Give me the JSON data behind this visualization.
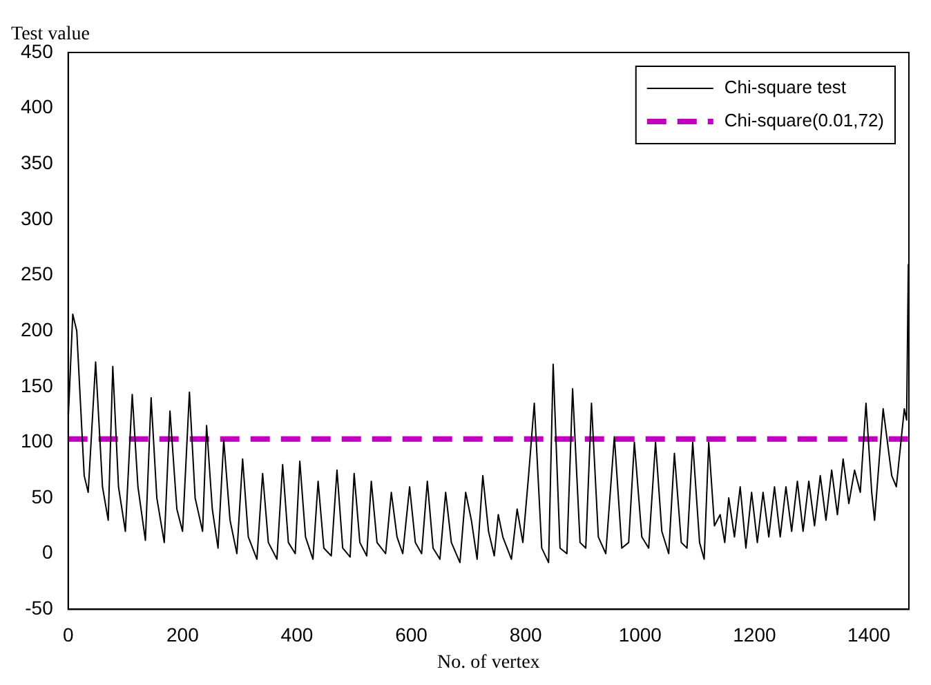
{
  "chart_data": {
    "type": "line",
    "xlabel": "No. of vertex",
    "ylabel": "Test value",
    "xlim": [
      0,
      1470
    ],
    "ylim": [
      -50,
      450
    ],
    "xticks": [
      0,
      200,
      400,
      600,
      800,
      1000,
      1200,
      1400
    ],
    "yticks": [
      -50,
      0,
      50,
      100,
      150,
      200,
      250,
      300,
      350,
      400,
      450
    ],
    "grid": false,
    "legend": "top right",
    "marker": "none",
    "series": [
      {
        "name": "Chi-square test",
        "color": "#000000",
        "line_style": "solid",
        "x": [
          0,
          8,
          15,
          28,
          35,
          48,
          60,
          70,
          78,
          88,
          100,
          112,
          122,
          135,
          145,
          155,
          168,
          178,
          190,
          200,
          212,
          222,
          235,
          242,
          252,
          262,
          272,
          283,
          295,
          305,
          315,
          330,
          340,
          350,
          365,
          375,
          385,
          397,
          405,
          415,
          428,
          437,
          447,
          460,
          470,
          480,
          493,
          500,
          510,
          522,
          530,
          540,
          555,
          565,
          575,
          585,
          597,
          607,
          618,
          628,
          638,
          650,
          660,
          670,
          685,
          695,
          705,
          715,
          725,
          735,
          745,
          752,
          760,
          775,
          785,
          795,
          805,
          815,
          828,
          840,
          848,
          860,
          872,
          882,
          895,
          905,
          915,
          927,
          940,
          955,
          968,
          980,
          990,
          1003,
          1015,
          1027,
          1038,
          1050,
          1060,
          1072,
          1082,
          1092,
          1104,
          1112,
          1120,
          1130,
          1140,
          1148,
          1155,
          1165,
          1175,
          1185,
          1195,
          1205,
          1215,
          1225,
          1235,
          1245,
          1255,
          1265,
          1275,
          1285,
          1295,
          1305,
          1315,
          1325,
          1335,
          1345,
          1355,
          1365,
          1375,
          1385,
          1395,
          1405,
          1410,
          1425,
          1435,
          1440,
          1448,
          1455,
          1462,
          1466,
          1469
        ],
        "values": [
          120,
          215,
          200,
          70,
          55,
          172,
          60,
          30,
          168,
          60,
          20,
          143,
          60,
          12,
          140,
          50,
          10,
          128,
          40,
          20,
          145,
          50,
          20,
          115,
          40,
          5,
          102,
          30,
          0,
          85,
          15,
          -5,
          72,
          10,
          -5,
          80,
          10,
          0,
          83,
          15,
          -5,
          65,
          5,
          -2,
          75,
          5,
          -3,
          72,
          10,
          -2,
          65,
          10,
          0,
          55,
          15,
          0,
          60,
          10,
          0,
          65,
          5,
          -5,
          55,
          10,
          -8,
          55,
          30,
          -5,
          70,
          20,
          -2,
          35,
          15,
          -5,
          40,
          10,
          70,
          135,
          5,
          -8,
          170,
          5,
          0,
          148,
          10,
          5,
          135,
          15,
          0,
          105,
          5,
          10,
          100,
          15,
          5,
          100,
          20,
          0,
          90,
          10,
          5,
          100,
          10,
          -5,
          100,
          25,
          35,
          10,
          50,
          15,
          60,
          5,
          55,
          10,
          55,
          15,
          60,
          15,
          60,
          20,
          65,
          20,
          65,
          25,
          70,
          30,
          75,
          35,
          85,
          45,
          75,
          55,
          135,
          55,
          30,
          130,
          90,
          70,
          60,
          95,
          130,
          120,
          260
        ]
      },
      {
        "name": "Chi-square(0.01,72)",
        "color": "#bf00bf",
        "line_style": "dashed",
        "x": [
          0,
          1470
        ],
        "values": [
          103,
          103
        ]
      }
    ]
  }
}
